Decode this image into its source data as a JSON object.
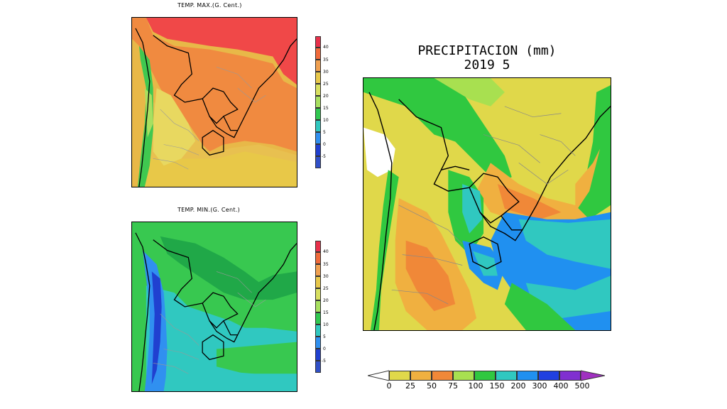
{
  "tmax": {
    "title": "TEMP. MAX.(G. Cent.)",
    "colorbar": {
      "labels": [
        "40",
        "35",
        "30",
        "25",
        "20",
        "15",
        "10",
        "5",
        "0",
        "-5"
      ],
      "colors": [
        "#e8304a",
        "#f06a3a",
        "#f0a050",
        "#e8c84a",
        "#d8e060",
        "#a8e060",
        "#30c850",
        "#30c8c0",
        "#3090f0",
        "#2040d0"
      ]
    }
  },
  "tmin": {
    "title": "TEMP. MIN.(G. Cent.)",
    "colorbar": {
      "labels": [
        "40",
        "35",
        "30",
        "25",
        "20",
        "15",
        "10",
        "5",
        "0",
        "-5"
      ],
      "colors": [
        "#e8304a",
        "#f06a3a",
        "#f0a050",
        "#e8c84a",
        "#d8e060",
        "#a8e060",
        "#30c850",
        "#30c8c0",
        "#3090f0",
        "#2040d0"
      ]
    }
  },
  "precip": {
    "title_line1": "PRECIPITACION (mm)",
    "title_line2": "2019  5",
    "colorbar": {
      "labels": [
        "0",
        "25",
        "50",
        "75",
        "100",
        "150",
        "200",
        "300",
        "400",
        "500"
      ],
      "colors": [
        "#ffffff",
        "#e0d84a",
        "#f0b040",
        "#f08838",
        "#a8e050",
        "#30c840",
        "#30c8c0",
        "#2090f0",
        "#2040e0",
        "#8030d0",
        "#a030c0"
      ]
    }
  }
}
